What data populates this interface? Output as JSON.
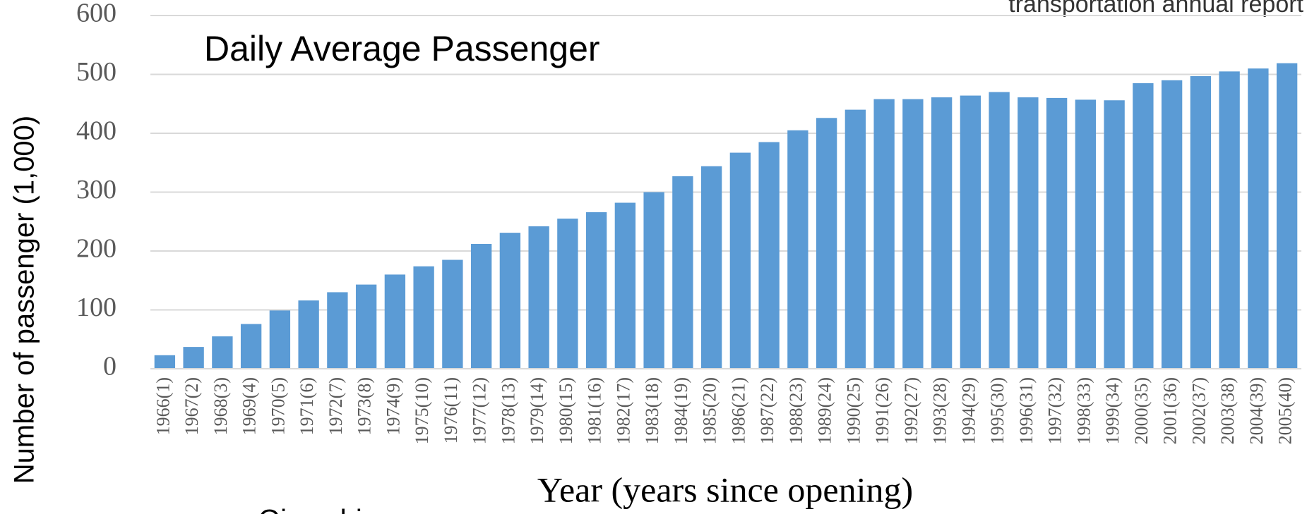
{
  "chart_data": {
    "type": "bar",
    "title": "Daily Average Passenger",
    "y_label": "Number of passenger (1,000)",
    "x_label": "Year (years since opening)",
    "annotations": [
      "transportation annual report",
      "Oimachi"
    ],
    "categories": [
      "1966(1)",
      "1967(2)",
      "1968(3)",
      "1969(4)",
      "1970(5)",
      "1971(6)",
      "1972(7)",
      "1973(8)",
      "1974(9)",
      "1975(10)",
      "1976(11)",
      "1977(12)",
      "1978(13)",
      "1979(14)",
      "1980(15)",
      "1981(16)",
      "1982(17)",
      "1983(18)",
      "1984(19)",
      "1985(20)",
      "1986(21)",
      "1987(22)",
      "1988(23)",
      "1989(24)",
      "1990(25)",
      "1991(26)",
      "1992(27)",
      "1993(28)",
      "1994(29)",
      "1995(30)",
      "1996(31)",
      "1997(32)",
      "1998(33)",
      "1999(34)",
      "2000(35)",
      "2001(36)",
      "2002(37)",
      "2003(38)",
      "2004(39)",
      "2005(40)"
    ],
    "values": [
      23,
      37,
      55,
      76,
      99,
      116,
      130,
      143,
      160,
      174,
      185,
      212,
      231,
      242,
      255,
      266,
      282,
      300,
      327,
      344,
      367,
      385,
      405,
      426,
      440,
      458,
      458,
      461,
      464,
      470,
      461,
      460,
      457,
      456,
      485,
      490,
      497,
      505,
      510,
      519
    ],
    "color": "#5b9bd5",
    "ylim": [
      0,
      600
    ],
    "yticks": [
      0,
      100,
      200,
      300,
      400,
      500,
      600
    ],
    "grid": true
  }
}
